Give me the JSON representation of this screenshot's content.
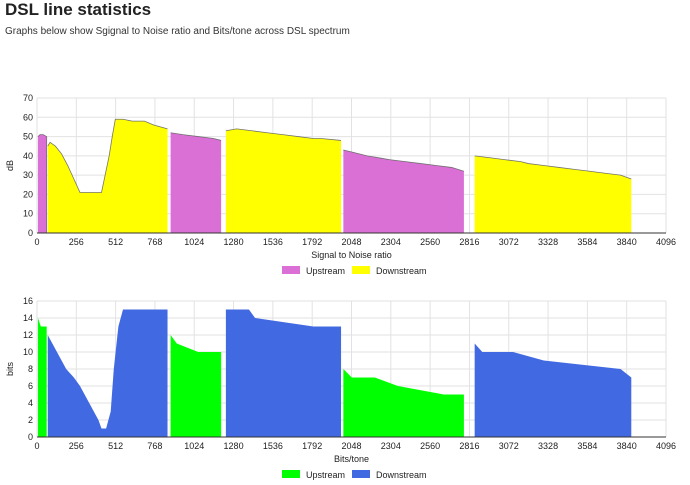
{
  "page": {
    "title": "DSL line statistics",
    "subtitle": "Graphs below show Sgignal to Noise ratio and Bits/tone across DSL spectrum"
  },
  "chart_data": [
    {
      "id": "snr",
      "type": "area",
      "title": "",
      "xlabel": "Signal to Noise ratio",
      "ylabel": "dB",
      "xlim": [
        0,
        4096
      ],
      "ylim": [
        0,
        70
      ],
      "xticks": [
        0,
        256,
        512,
        768,
        1024,
        1280,
        1536,
        1792,
        2048,
        2304,
        2560,
        2816,
        3072,
        3328,
        3584,
        3840,
        4096
      ],
      "yticks": [
        0,
        10,
        20,
        30,
        40,
        50,
        60,
        70
      ],
      "grid": true,
      "legend": "bottom-center",
      "series": [
        {
          "name": "Upstream",
          "color": "#da70d6",
          "segments": [
            [
              [
                6,
                50
              ],
              [
                20,
                51
              ],
              [
                40,
                51
              ],
              [
                63,
                50
              ],
              [
                63,
                0
              ]
            ],
            [
              [
                870,
                52
              ],
              [
                950,
                51
              ],
              [
                1050,
                50
              ],
              [
                1150,
                49
              ],
              [
                1199,
                48
              ]
            ],
            [
              [
                1995,
                43
              ],
              [
                2050,
                42
              ],
              [
                2150,
                40
              ],
              [
                2300,
                38
              ],
              [
                2400,
                37
              ],
              [
                2500,
                36
              ],
              [
                2600,
                35
              ],
              [
                2700,
                34
              ],
              [
                2780,
                32
              ]
            ]
          ]
        },
        {
          "name": "Downstream",
          "color": "#ffff00",
          "segments": [
            [
              [
                70,
                45
              ],
              [
                85,
                47
              ],
              [
                120,
                45
              ],
              [
                160,
                41
              ],
              [
                200,
                35
              ],
              [
                240,
                28
              ],
              [
                280,
                21
              ],
              [
                360,
                21
              ],
              [
                420,
                21
              ],
              [
                470,
                40
              ],
              [
                490,
                50
              ],
              [
                510,
                59
              ],
              [
                560,
                59
              ],
              [
                620,
                58
              ],
              [
                700,
                58
              ],
              [
                760,
                56
              ],
              [
                850,
                54
              ]
            ],
            [
              [
                1230,
                53
              ],
              [
                1300,
                54
              ],
              [
                1400,
                53
              ],
              [
                1500,
                52
              ],
              [
                1600,
                51
              ],
              [
                1700,
                50
              ],
              [
                1800,
                49
              ],
              [
                1850,
                49
              ],
              [
                1980,
                48
              ]
            ],
            [
              [
                2850,
                40
              ],
              [
                2950,
                39
              ],
              [
                3050,
                38
              ],
              [
                3150,
                37
              ],
              [
                3200,
                36
              ],
              [
                3300,
                35
              ],
              [
                3400,
                34
              ],
              [
                3500,
                33
              ],
              [
                3600,
                32
              ],
              [
                3700,
                31
              ],
              [
                3800,
                30
              ],
              [
                3870,
                28
              ]
            ]
          ]
        }
      ]
    },
    {
      "id": "bits",
      "type": "area",
      "title": "",
      "xlabel": "Bits/tone",
      "ylabel": "bits",
      "xlim": [
        0,
        4096
      ],
      "ylim": [
        0,
        16
      ],
      "xticks": [
        0,
        256,
        512,
        768,
        1024,
        1280,
        1536,
        1792,
        2048,
        2304,
        2560,
        2816,
        3072,
        3328,
        3584,
        3840,
        4096
      ],
      "yticks": [
        0,
        2,
        4,
        6,
        8,
        10,
        12,
        14,
        16
      ],
      "grid": true,
      "legend": "bottom-center",
      "series": [
        {
          "name": "Upstream",
          "color": "#00ff00",
          "segments": [
            [
              [
                6,
                14
              ],
              [
                25,
                13
              ],
              [
                63,
                13
              ]
            ],
            [
              [
                870,
                12
              ],
              [
                910,
                11
              ],
              [
                1050,
                10
              ],
              [
                1199,
                10
              ]
            ],
            [
              [
                1995,
                8
              ],
              [
                2050,
                7
              ],
              [
                2200,
                7
              ],
              [
                2350,
                6
              ],
              [
                2650,
                5
              ],
              [
                2780,
                5
              ]
            ]
          ]
        },
        {
          "name": "Downstream",
          "color": "#4169e1",
          "segments": [
            [
              [
                70,
                12
              ],
              [
                100,
                11
              ],
              [
                130,
                10
              ],
              [
                160,
                9
              ],
              [
                190,
                8
              ],
              [
                240,
                7
              ],
              [
                280,
                6
              ],
              [
                310,
                5
              ],
              [
                340,
                4
              ],
              [
                370,
                3
              ],
              [
                400,
                2
              ],
              [
                420,
                1
              ],
              [
                450,
                1
              ],
              [
                480,
                3
              ],
              [
                500,
                8
              ],
              [
                530,
                13
              ],
              [
                560,
                15
              ],
              [
                850,
                15
              ]
            ],
            [
              [
                1230,
                15
              ],
              [
                1380,
                15
              ],
              [
                1420,
                14
              ],
              [
                1800,
                13
              ],
              [
                1980,
                13
              ]
            ],
            [
              [
                2850,
                11
              ],
              [
                2900,
                10
              ],
              [
                3100,
                10
              ],
              [
                3300,
                9
              ],
              [
                3800,
                8
              ],
              [
                3870,
                7
              ]
            ]
          ]
        }
      ]
    }
  ]
}
